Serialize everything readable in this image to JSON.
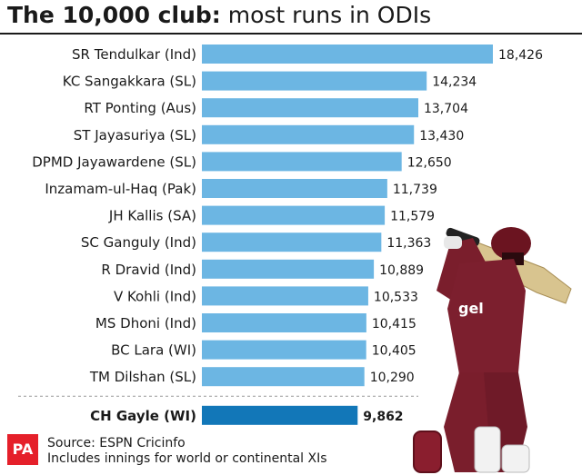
{
  "header": {
    "title_bold": "The 10,000 club:",
    "title_rest": " most runs in ODIs"
  },
  "footer": {
    "logo_text": "PA",
    "source": "Source: ESPN Cricinfo",
    "note": "Includes innings for world or continental XIs"
  },
  "colors": {
    "bar": "#6cb6e3",
    "highlight_bar": "#1277b8",
    "divider": "#999999",
    "text": "#1a1a1a"
  },
  "image": {
    "subject": "cricketer in maroon kit mid-swing",
    "shirt_text": "gel"
  },
  "chart_data": {
    "type": "bar",
    "orientation": "horizontal",
    "title": "The 10,000 club: most runs in ODIs",
    "categories": [
      "SR Tendulkar (Ind)",
      "KC Sangakkara (SL)",
      "RT Ponting (Aus)",
      "ST Jayasuriya (SL)",
      "DPMD Jayawardene (SL)",
      "Inzamam-ul-Haq (Pak)",
      "JH Kallis (SA)",
      "SC Ganguly (Ind)",
      "R Dravid (Ind)",
      "V Kohli (Ind)",
      "MS Dhoni (Ind)",
      "BC Lara (WI)",
      "TM Dilshan (SL)",
      "CH Gayle (WI)"
    ],
    "values": [
      18426,
      14234,
      13704,
      13430,
      12650,
      11739,
      11579,
      11363,
      10889,
      10533,
      10415,
      10405,
      10290,
      9862
    ],
    "value_labels": [
      "18,426",
      "14,234",
      "13,704",
      "13,430",
      "12,650",
      "11,739",
      "11,579",
      "11,363",
      "10,889",
      "10,533",
      "10,415",
      "10,405",
      "10,290",
      "9,862"
    ],
    "highlight_index": 13,
    "xlim": [
      0,
      18426
    ],
    "grid": false,
    "legend": "none"
  }
}
